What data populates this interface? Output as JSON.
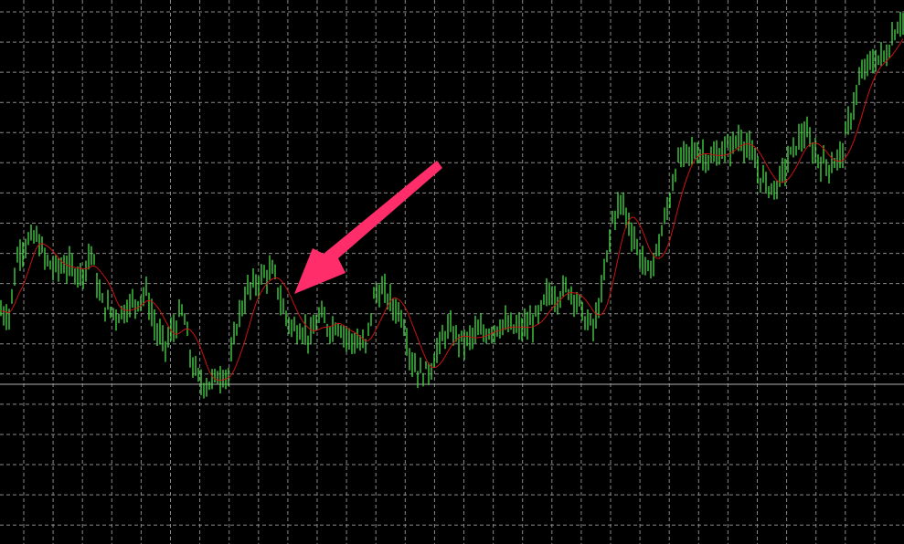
{
  "chart_data": {
    "type": "line",
    "title": "",
    "xlabel": "",
    "ylabel": "",
    "grid": true,
    "legend": "none",
    "colors": {
      "background": "#000000",
      "bars": "#44dd44",
      "moving_average": "#cc1111",
      "grid": "#8a8a8a",
      "bid_line": "#b0b0b0",
      "arrow": "#ff2e6a"
    },
    "series": [
      {
        "kind": "price-bars",
        "x": [
          0,
          10,
          20,
          30,
          40,
          50,
          60,
          70,
          80,
          90,
          100,
          110,
          120,
          130,
          140,
          150,
          160,
          170,
          180,
          190,
          200,
          210,
          220,
          230,
          240,
          250,
          260,
          270,
          280,
          290,
          300,
          310,
          320,
          330,
          340,
          350,
          360,
          370,
          380,
          390,
          400,
          410,
          420,
          430,
          440,
          450,
          460,
          470,
          480,
          490,
          500,
          510,
          520,
          530,
          540,
          550,
          560,
          570,
          580,
          590,
          600,
          610,
          620,
          630,
          640,
          650,
          660,
          670,
          680,
          690,
          700,
          710,
          720,
          730,
          740,
          750,
          760,
          770,
          780,
          790,
          800,
          810,
          820,
          830,
          840,
          850,
          860,
          870,
          880,
          890,
          900,
          910,
          920,
          930,
          940,
          950,
          960,
          970,
          980,
          989
        ],
        "values": [
          256,
          251,
          321,
          331,
          336,
          311,
          301,
          306,
          301,
          296,
          321,
          266,
          256,
          251,
          261,
          266,
          276,
          236,
          216,
          236,
          256,
          196,
          176,
          176,
          186,
          186,
          246,
          276,
          286,
          296,
          296,
          256,
          236,
          236,
          226,
          251,
          236,
          241,
          226,
          221,
          216,
          276,
          276,
          261,
          251,
          201,
          186,
          191,
          216,
          236,
          226,
          221,
          231,
          231,
          236,
          241,
          236,
          236,
          241,
          251,
          276,
          271,
          281,
          271,
          246,
          236,
          286,
          356,
          376,
          346,
          316,
          296,
          326,
          366,
          416,
          426,
          431,
          426,
          421,
          431,
          436,
          446,
          431,
          406,
          391,
          391,
          416,
          436,
          451,
          431,
          416,
          416,
          426,
          466,
          506,
          526,
          531,
          536,
          566,
          576
        ]
      },
      {
        "kind": "moving-average"
      }
    ],
    "bid_level": 175,
    "annotation": {
      "type": "arrow"
    }
  }
}
